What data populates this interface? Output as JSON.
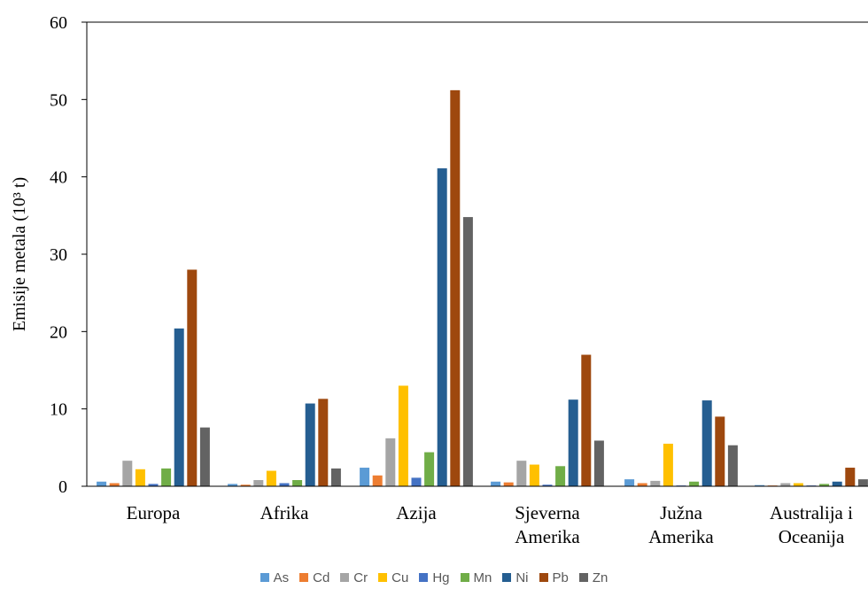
{
  "chart_data": {
    "type": "bar",
    "ylabel": "Emisije metala (10³ t)",
    "ylim": [
      0,
      60
    ],
    "yticks": [
      0,
      10,
      20,
      30,
      40,
      50,
      60
    ],
    "categories": [
      [
        "Europa"
      ],
      [
        "Afrika"
      ],
      [
        "Azija"
      ],
      [
        "Sjeverna",
        "Amerika"
      ],
      [
        "Južna",
        "Amerika"
      ],
      [
        "Australija i",
        "Oceanija"
      ]
    ],
    "series": [
      {
        "name": "As",
        "color": "#5B9BD5",
        "values": [
          0.6,
          0.3,
          2.4,
          0.6,
          0.9,
          0.15
        ]
      },
      {
        "name": "Cd",
        "color": "#ED7D31",
        "values": [
          0.4,
          0.2,
          1.4,
          0.5,
          0.4,
          0.1
        ]
      },
      {
        "name": "Cr",
        "color": "#A5A5A5",
        "values": [
          3.3,
          0.8,
          6.2,
          3.3,
          0.7,
          0.4
        ]
      },
      {
        "name": "Cu",
        "color": "#FFC000",
        "values": [
          2.2,
          2.0,
          13.0,
          2.8,
          5.5,
          0.4
        ]
      },
      {
        "name": "Hg",
        "color": "#4472C4",
        "values": [
          0.3,
          0.4,
          1.1,
          0.2,
          0.1,
          0.1
        ]
      },
      {
        "name": "Mn",
        "color": "#70AD47",
        "values": [
          2.3,
          0.8,
          4.4,
          2.6,
          0.6,
          0.3
        ]
      },
      {
        "name": "Ni",
        "color": "#255E91",
        "values": [
          20.4,
          10.7,
          41.1,
          11.2,
          11.1,
          0.6
        ]
      },
      {
        "name": "Pb",
        "color": "#9E480E",
        "values": [
          28.0,
          11.3,
          51.2,
          17.0,
          9.0,
          2.4
        ]
      },
      {
        "name": "Zn",
        "color": "#636363",
        "values": [
          7.6,
          2.3,
          34.8,
          5.9,
          5.3,
          0.9
        ]
      }
    ],
    "legend_position": "bottom",
    "grid": false
  }
}
